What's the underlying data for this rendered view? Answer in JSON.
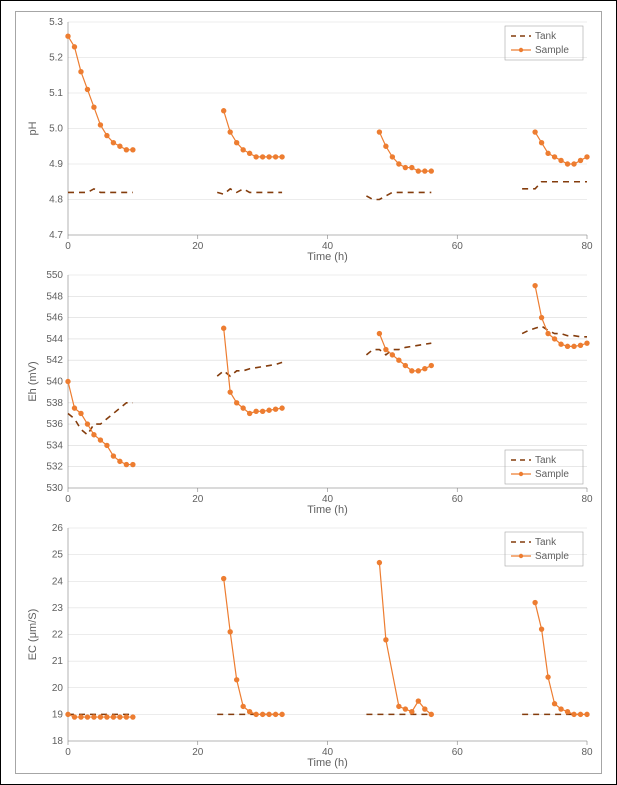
{
  "colors": {
    "tank": "#843c0c",
    "sample": "#ed7d31",
    "grid": "#d9d9d9",
    "axis": "#808080",
    "text": "#606060",
    "panel_border": "#a6a6a6",
    "background": "#ffffff"
  },
  "xaxis": {
    "label": "Time (h)",
    "min": 0,
    "max": 80,
    "tick_step": 20
  },
  "legend": {
    "tank": "Tank",
    "sample": "Sample"
  },
  "font": {
    "tick_size": 10,
    "axis_title_size": 11
  },
  "marker": {
    "shape": "circle",
    "size": 2.2
  },
  "line_width": {
    "tank": 1.6,
    "sample": 1.2
  },
  "charts": [
    {
      "id": "ph",
      "ylabel": "pH",
      "ymin": 4.7,
      "ymax": 5.3,
      "ytick_step": 0.1,
      "legend_pos": "top-right",
      "tank": [
        [
          0,
          4.82
        ],
        [
          1,
          4.82
        ],
        [
          2,
          4.82
        ],
        [
          3,
          4.82
        ],
        [
          4,
          4.83
        ],
        [
          5,
          4.82
        ],
        [
          6,
          4.82
        ],
        [
          7,
          4.82
        ],
        [
          8,
          4.82
        ],
        [
          9,
          4.82
        ],
        [
          10,
          4.82
        ],
        [
          23,
          4.82
        ],
        [
          24,
          4.815
        ],
        [
          25,
          4.83
        ],
        [
          26,
          4.82
        ],
        [
          27,
          4.83
        ],
        [
          28,
          4.82
        ],
        [
          29,
          4.82
        ],
        [
          30,
          4.82
        ],
        [
          31,
          4.82
        ],
        [
          32,
          4.82
        ],
        [
          33,
          4.82
        ],
        [
          46,
          4.81
        ],
        [
          47,
          4.8
        ],
        [
          48,
          4.8
        ],
        [
          49,
          4.81
        ],
        [
          50,
          4.82
        ],
        [
          51,
          4.82
        ],
        [
          52,
          4.82
        ],
        [
          53,
          4.82
        ],
        [
          54,
          4.82
        ],
        [
          55,
          4.82
        ],
        [
          56,
          4.82
        ],
        [
          70,
          4.83
        ],
        [
          71,
          4.83
        ],
        [
          72,
          4.83
        ],
        [
          73,
          4.85
        ],
        [
          74,
          4.85
        ],
        [
          75,
          4.85
        ],
        [
          76,
          4.85
        ],
        [
          77,
          4.85
        ],
        [
          78,
          4.85
        ],
        [
          79,
          4.85
        ],
        [
          80,
          4.85
        ]
      ],
      "sample_groups": [
        [
          [
            0,
            5.26
          ],
          [
            1,
            5.23
          ],
          [
            2,
            5.16
          ],
          [
            3,
            5.11
          ],
          [
            4,
            5.06
          ],
          [
            5,
            5.01
          ],
          [
            6,
            4.98
          ],
          [
            7,
            4.96
          ],
          [
            8,
            4.95
          ],
          [
            9,
            4.94
          ],
          [
            10,
            4.94
          ]
        ],
        [
          [
            24,
            5.05
          ],
          [
            25,
            4.99
          ],
          [
            26,
            4.96
          ],
          [
            27,
            4.94
          ],
          [
            28,
            4.93
          ],
          [
            29,
            4.92
          ],
          [
            30,
            4.92
          ],
          [
            31,
            4.92
          ],
          [
            32,
            4.92
          ],
          [
            33,
            4.92
          ]
        ],
        [
          [
            48,
            4.99
          ],
          [
            49,
            4.95
          ],
          [
            50,
            4.92
          ],
          [
            51,
            4.9
          ],
          [
            52,
            4.89
          ],
          [
            53,
            4.89
          ],
          [
            54,
            4.88
          ],
          [
            55,
            4.88
          ],
          [
            56,
            4.88
          ]
        ],
        [
          [
            72,
            4.99
          ],
          [
            73,
            4.96
          ],
          [
            74,
            4.93
          ],
          [
            75,
            4.92
          ],
          [
            76,
            4.91
          ],
          [
            77,
            4.9
          ],
          [
            78,
            4.9
          ],
          [
            79,
            4.91
          ],
          [
            80,
            4.92
          ]
        ]
      ]
    },
    {
      "id": "eh",
      "ylabel": "Eh (mV)",
      "ymin": 530,
      "ymax": 550,
      "ytick_step": 2,
      "legend_pos": "bottom-right",
      "tank": [
        [
          0,
          537
        ],
        [
          1,
          536.5
        ],
        [
          2,
          535.5
        ],
        [
          3,
          535
        ],
        [
          4,
          536
        ],
        [
          5,
          536
        ],
        [
          6,
          536.5
        ],
        [
          7,
          537
        ],
        [
          8,
          537.5
        ],
        [
          9,
          538
        ],
        [
          10,
          538
        ],
        [
          23,
          540.5
        ],
        [
          24,
          541
        ],
        [
          25,
          540.5
        ],
        [
          26,
          541
        ],
        [
          27,
          541
        ],
        [
          28,
          541.2
        ],
        [
          29,
          541.3
        ],
        [
          30,
          541.4
        ],
        [
          31,
          541.5
        ],
        [
          32,
          541.6
        ],
        [
          33,
          541.8
        ],
        [
          46,
          542.5
        ],
        [
          47,
          543
        ],
        [
          48,
          543
        ],
        [
          49,
          542.5
        ],
        [
          50,
          543
        ],
        [
          51,
          543
        ],
        [
          52,
          543.2
        ],
        [
          53,
          543.3
        ],
        [
          54,
          543.4
        ],
        [
          55,
          543.5
        ],
        [
          56,
          543.6
        ],
        [
          70,
          544.5
        ],
        [
          71,
          544.8
        ],
        [
          72,
          545
        ],
        [
          73,
          545.2
        ],
        [
          74,
          544.8
        ],
        [
          75,
          544.5
        ],
        [
          76,
          544.5
        ],
        [
          77,
          544.3
        ],
        [
          78,
          544.3
        ],
        [
          79,
          544.2
        ],
        [
          80,
          544.2
        ]
      ],
      "sample_groups": [
        [
          [
            0,
            540
          ],
          [
            1,
            537.5
          ],
          [
            2,
            537
          ],
          [
            3,
            536
          ],
          [
            4,
            535
          ],
          [
            5,
            534.5
          ],
          [
            6,
            534
          ],
          [
            7,
            533
          ],
          [
            8,
            532.5
          ],
          [
            9,
            532.2
          ],
          [
            10,
            532.2
          ]
        ],
        [
          [
            24,
            545
          ],
          [
            25,
            539
          ],
          [
            26,
            538
          ],
          [
            27,
            537.5
          ],
          [
            28,
            537
          ],
          [
            29,
            537.2
          ],
          [
            30,
            537.2
          ],
          [
            31,
            537.3
          ],
          [
            32,
            537.4
          ],
          [
            33,
            537.5
          ]
        ],
        [
          [
            48,
            544.5
          ],
          [
            49,
            543
          ],
          [
            50,
            542.5
          ],
          [
            51,
            542
          ],
          [
            52,
            541.5
          ],
          [
            53,
            541
          ],
          [
            54,
            541
          ],
          [
            55,
            541.2
          ],
          [
            56,
            541.5
          ]
        ],
        [
          [
            72,
            549
          ],
          [
            73,
            546
          ],
          [
            74,
            544.5
          ],
          [
            75,
            544
          ],
          [
            76,
            543.5
          ],
          [
            77,
            543.3
          ],
          [
            78,
            543.3
          ],
          [
            79,
            543.4
          ],
          [
            80,
            543.6
          ]
        ]
      ]
    },
    {
      "id": "ec",
      "ylabel": "EC (μm/S)",
      "ymin": 18,
      "ymax": 26,
      "ytick_step": 1,
      "legend_pos": "top-right",
      "tank": [
        [
          0,
          19.0
        ],
        [
          1,
          19.0
        ],
        [
          2,
          19.0
        ],
        [
          3,
          19.0
        ],
        [
          4,
          19.0
        ],
        [
          5,
          19.0
        ],
        [
          6,
          19.0
        ],
        [
          7,
          19.0
        ],
        [
          8,
          19.0
        ],
        [
          9,
          19.0
        ],
        [
          10,
          19.0
        ],
        [
          23,
          19.0
        ],
        [
          24,
          19.0
        ],
        [
          25,
          19.0
        ],
        [
          26,
          19.0
        ],
        [
          27,
          19.0
        ],
        [
          28,
          19.0
        ],
        [
          29,
          19.0
        ],
        [
          30,
          19.0
        ],
        [
          31,
          19.0
        ],
        [
          32,
          19.0
        ],
        [
          33,
          19.0
        ],
        [
          46,
          19.0
        ],
        [
          47,
          19.0
        ],
        [
          48,
          19.0
        ],
        [
          49,
          19.0
        ],
        [
          50,
          19.0
        ],
        [
          51,
          19.0
        ],
        [
          52,
          19.0
        ],
        [
          53,
          19.0
        ],
        [
          54,
          19.0
        ],
        [
          55,
          19.0
        ],
        [
          56,
          19.0
        ],
        [
          70,
          19.0
        ],
        [
          71,
          19.0
        ],
        [
          72,
          19.0
        ],
        [
          73,
          19.0
        ],
        [
          74,
          19.0
        ],
        [
          75,
          19.0
        ],
        [
          76,
          19.0
        ],
        [
          77,
          19.0
        ],
        [
          78,
          19.0
        ],
        [
          79,
          19.0
        ],
        [
          80,
          19.0
        ]
      ],
      "sample_groups": [
        [
          [
            0,
            19.0
          ],
          [
            1,
            18.9
          ],
          [
            2,
            18.9
          ],
          [
            3,
            18.9
          ],
          [
            4,
            18.9
          ],
          [
            5,
            18.9
          ],
          [
            6,
            18.9
          ],
          [
            7,
            18.9
          ],
          [
            8,
            18.9
          ],
          [
            9,
            18.9
          ],
          [
            10,
            18.9
          ]
        ],
        [
          [
            24,
            24.1
          ],
          [
            25,
            22.1
          ],
          [
            26,
            20.3
          ],
          [
            27,
            19.3
          ],
          [
            28,
            19.1
          ],
          [
            29,
            19.0
          ],
          [
            30,
            19.0
          ],
          [
            31,
            19.0
          ],
          [
            32,
            19.0
          ],
          [
            33,
            19.0
          ]
        ],
        [
          [
            48,
            24.7
          ],
          [
            49,
            21.8
          ],
          [
            51,
            19.3
          ],
          [
            52,
            19.2
          ],
          [
            53,
            19.1
          ],
          [
            54,
            19.5
          ],
          [
            55,
            19.2
          ],
          [
            56,
            19.0
          ]
        ],
        [
          [
            72,
            23.2
          ],
          [
            73,
            22.2
          ],
          [
            74,
            20.4
          ],
          [
            75,
            19.4
          ],
          [
            76,
            19.2
          ],
          [
            77,
            19.1
          ],
          [
            78,
            19.0
          ],
          [
            79,
            19.0
          ],
          [
            80,
            19.0
          ]
        ]
      ]
    }
  ]
}
